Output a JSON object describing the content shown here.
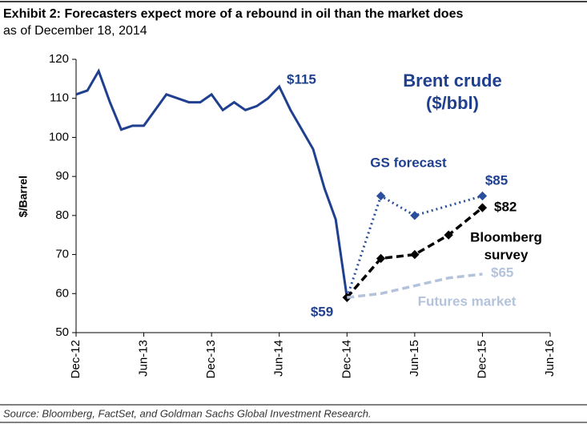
{
  "chart_data": {
    "type": "line",
    "title": "Exhibit 2: Forecasters expect more of a rebound in oil than the market does",
    "subtitle": "as of December 18, 2014",
    "y_label": "$/Barrel",
    "source": "Source: Bloomberg, FactSet, and Goldman Sachs Global Investment Research.",
    "xlim": [
      "Dec-12",
      "Jun-16"
    ],
    "xticks": [
      "Dec-12",
      "Jun-13",
      "Dec-13",
      "Jun-14",
      "Dec-14",
      "Jun-15",
      "Dec-15",
      "Jun-16"
    ],
    "ylim": [
      50,
      120
    ],
    "yticks": [
      50,
      60,
      70,
      80,
      90,
      100,
      110,
      120
    ],
    "grid": false,
    "series": [
      {
        "color": "#1f3f8f",
        "style": "solid",
        "markers": false,
        "x": [
          "Dec-12",
          "Jan-13",
          "Feb-13",
          "Mar-13",
          "Apr-13",
          "May-13",
          "Jun-13",
          "Jul-13",
          "Aug-13",
          "Sep-13",
          "Oct-13",
          "Nov-13",
          "Dec-13",
          "Jan-14",
          "Feb-14",
          "Mar-14",
          "Apr-14",
          "May-14",
          "Jun-14",
          "Jul-14",
          "Aug-14",
          "Sep-14",
          "Oct-14",
          "Nov-14",
          "Dec-14"
        ],
        "values": [
          111,
          112,
          117,
          109,
          102,
          103,
          103,
          107,
          111,
          110,
          109,
          109,
          111,
          107,
          109,
          107,
          108,
          110,
          113,
          107,
          102,
          97,
          87,
          79,
          59
        ]
      },
      {
        "color": "#2a4f9c",
        "style": "dotted",
        "markers": true,
        "x": [
          "Dec-14",
          "Mar-15",
          "Jun-15",
          "Dec-15"
        ],
        "values": [
          59,
          85,
          80,
          85
        ]
      },
      {
        "color": "#000000",
        "style": "dashed",
        "markers": true,
        "x": [
          "Dec-14",
          "Mar-15",
          "Jun-15",
          "Sep-15",
          "Dec-15"
        ],
        "values": [
          59,
          69,
          70,
          75,
          82
        ]
      },
      {
        "color": "#b3c3dc",
        "style": "dashed",
        "markers": false,
        "x": [
          "Dec-14",
          "Mar-15",
          "Jun-15",
          "Sep-15",
          "Dec-15"
        ],
        "values": [
          59,
          60,
          62,
          64,
          65
        ]
      }
    ],
    "annotations": [
      "Brent crude",
      "($/bbl)",
      "$115",
      "GS forecast",
      "$85",
      "$82",
      "Bloomberg",
      "survey",
      "$65",
      "Futures market",
      "$59"
    ]
  }
}
